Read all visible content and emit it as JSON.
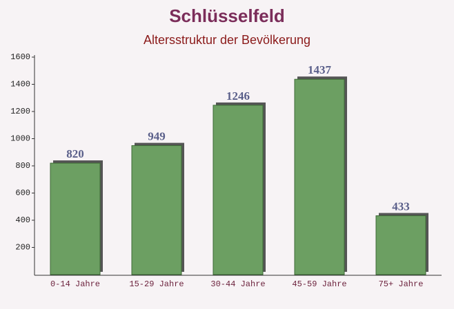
{
  "chart_data": {
    "type": "bar",
    "title": "Schlüsselfeld",
    "subtitle": "Altersstruktur der Bevölkerung",
    "categories": [
      "0-14 Jahre",
      "15-29 Jahre",
      "30-44 Jahre",
      "45-59 Jahre",
      "75+ Jahre"
    ],
    "values": [
      820,
      949,
      1246,
      1437,
      433
    ],
    "color": "#6c9f62",
    "ylim": [
      0,
      1600
    ],
    "yticks": [
      200,
      400,
      600,
      800,
      1000,
      1200,
      1400,
      1600
    ],
    "grid": false
  }
}
